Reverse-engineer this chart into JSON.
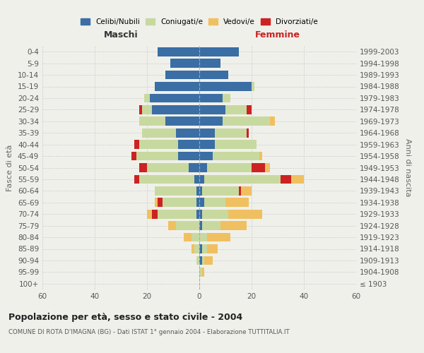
{
  "age_groups": [
    "100+",
    "95-99",
    "90-94",
    "85-89",
    "80-84",
    "75-79",
    "70-74",
    "65-69",
    "60-64",
    "55-59",
    "50-54",
    "45-49",
    "40-44",
    "35-39",
    "30-34",
    "25-29",
    "20-24",
    "15-19",
    "10-14",
    "5-9",
    "0-4"
  ],
  "birth_years": [
    "≤ 1903",
    "1904-1908",
    "1909-1913",
    "1914-1918",
    "1919-1923",
    "1924-1928",
    "1929-1933",
    "1934-1938",
    "1939-1943",
    "1944-1948",
    "1949-1953",
    "1954-1958",
    "1959-1963",
    "1964-1968",
    "1969-1973",
    "1974-1978",
    "1979-1983",
    "1984-1988",
    "1989-1993",
    "1994-1998",
    "1999-2003"
  ],
  "male_celibi": [
    0,
    0,
    0,
    0,
    0,
    0,
    1,
    1,
    1,
    2,
    4,
    8,
    8,
    9,
    13,
    18,
    19,
    17,
    13,
    11,
    16
  ],
  "male_coniugati": [
    0,
    0,
    1,
    2,
    3,
    9,
    15,
    13,
    16,
    21,
    16,
    16,
    15,
    13,
    10,
    4,
    2,
    0,
    0,
    0,
    0
  ],
  "male_vedovi": [
    0,
    0,
    0,
    1,
    3,
    3,
    2,
    1,
    0,
    0,
    0,
    0,
    0,
    0,
    0,
    0,
    0,
    0,
    0,
    0,
    0
  ],
  "male_divorziati": [
    0,
    0,
    0,
    0,
    0,
    0,
    2,
    2,
    0,
    2,
    3,
    2,
    2,
    0,
    0,
    1,
    0,
    0,
    0,
    0,
    0
  ],
  "female_celibi": [
    0,
    0,
    1,
    1,
    0,
    1,
    1,
    2,
    1,
    2,
    3,
    5,
    6,
    6,
    9,
    10,
    9,
    20,
    11,
    8,
    15
  ],
  "female_coniugati": [
    0,
    1,
    1,
    2,
    3,
    7,
    10,
    8,
    14,
    29,
    17,
    18,
    16,
    12,
    18,
    8,
    3,
    1,
    0,
    0,
    0
  ],
  "female_vedovi": [
    0,
    1,
    3,
    4,
    9,
    10,
    13,
    9,
    4,
    5,
    2,
    1,
    0,
    0,
    2,
    0,
    0,
    0,
    0,
    0,
    0
  ],
  "female_divorziati": [
    0,
    0,
    0,
    0,
    0,
    0,
    0,
    0,
    1,
    4,
    5,
    0,
    0,
    1,
    0,
    2,
    0,
    0,
    0,
    0,
    0
  ],
  "colors": {
    "celibi": "#3a6ea5",
    "coniugati": "#c8d9a0",
    "vedovi": "#f0c060",
    "divorziati": "#cc2222"
  },
  "title": "Popolazione per età, sesso e stato civile - 2004",
  "subtitle": "COMUNE DI ROTA D'IMAGNA (BG) - Dati ISTAT 1° gennaio 2004 - Elaborazione TUTTITALIA.IT",
  "maschi_label": "Maschi",
  "femmine_label": "Femmine",
  "ylabel_left": "Fasce di età",
  "ylabel_right": "Anni di nascita",
  "xlim": 60,
  "background_color": "#f0f0eb",
  "grid_color": "#cccccc",
  "legend_labels": [
    "Celibi/Nubili",
    "Coniugati/e",
    "Vedovi/e",
    "Divorziati/e"
  ]
}
